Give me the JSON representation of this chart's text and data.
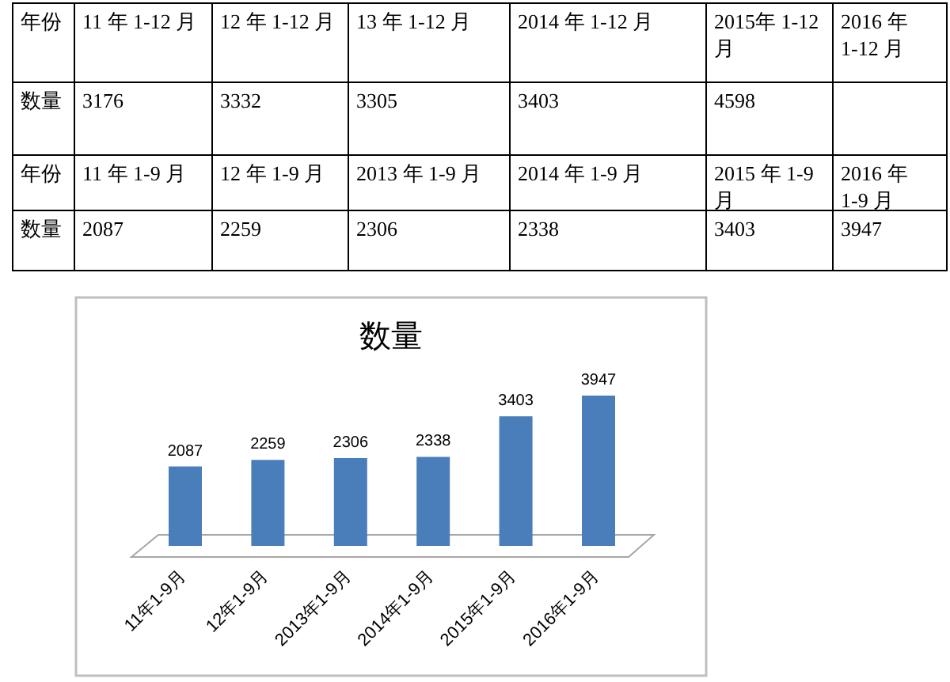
{
  "chart_data": [
    {
      "type": "other",
      "xlabel": "年份",
      "ylabel": "数量",
      "categories": [
        "11 年 1-12 月",
        "12 年 1-12 月",
        "13 年 1-12 月",
        "2014 年 1-12 月",
        "2015年 1-12 月",
        "2016 年 1-12 月"
      ],
      "values": [
        3176,
        3332,
        3305,
        3403,
        4598,
        null
      ],
      "data_labels": true
    },
    {
      "type": "other",
      "xlabel": "年份",
      "ylabel": "数量",
      "categories": [
        "11 年 1-9 月",
        "12 年 1-9 月",
        "2013 年 1-9 月",
        "2014 年 1-9 月",
        "2015 年 1-9 月",
        "2016 年 1-9 月"
      ],
      "values": [
        2087,
        2259,
        2306,
        2338,
        3403,
        3947
      ],
      "data_labels": true
    },
    {
      "type": "bar",
      "title": "数量",
      "categories": [
        "11年1-9月",
        "12年1-9月",
        "2013年1-9月",
        "2014年1-9月",
        "2015年1-9月",
        "2016年1-9月"
      ],
      "values": [
        2087,
        2259,
        2306,
        2338,
        3403,
        3947
      ],
      "color": "#4a7ebb",
      "data_labels": true
    }
  ]
}
